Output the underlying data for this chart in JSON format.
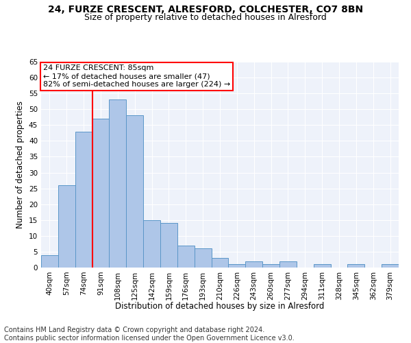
{
  "title_line1": "24, FURZE CRESCENT, ALRESFORD, COLCHESTER, CO7 8BN",
  "title_line2": "Size of property relative to detached houses in Alresford",
  "xlabel": "Distribution of detached houses by size in Alresford",
  "ylabel": "Number of detached properties",
  "bar_labels": [
    "40sqm",
    "57sqm",
    "74sqm",
    "91sqm",
    "108sqm",
    "125sqm",
    "142sqm",
    "159sqm",
    "176sqm",
    "193sqm",
    "210sqm",
    "226sqm",
    "243sqm",
    "260sqm",
    "277sqm",
    "294sqm",
    "311sqm",
    "328sqm",
    "345sqm",
    "362sqm",
    "379sqm"
  ],
  "bar_values": [
    4,
    26,
    43,
    47,
    53,
    48,
    15,
    14,
    7,
    6,
    3,
    1,
    2,
    1,
    2,
    0,
    1,
    0,
    1,
    0,
    1
  ],
  "bar_color": "#aec6e8",
  "bar_edgecolor": "#5a96c8",
  "background_color": "#eef2fa",
  "annotation_text": "24 FURZE CRESCENT: 85sqm\n← 17% of detached houses are smaller (47)\n82% of semi-detached houses are larger (224) →",
  "vline_bar_index": 3,
  "vline_color": "red",
  "annotation_box_color": "white",
  "annotation_box_edgecolor": "red",
  "footer_line1": "Contains HM Land Registry data © Crown copyright and database right 2024.",
  "footer_line2": "Contains public sector information licensed under the Open Government Licence v3.0.",
  "ylim": [
    0,
    65
  ],
  "yticks": [
    0,
    5,
    10,
    15,
    20,
    25,
    30,
    35,
    40,
    45,
    50,
    55,
    60,
    65
  ],
  "title_fontsize": 10,
  "subtitle_fontsize": 9,
  "axis_label_fontsize": 8.5,
  "tick_fontsize": 7.5,
  "footer_fontsize": 7.0,
  "annotation_fontsize": 8
}
